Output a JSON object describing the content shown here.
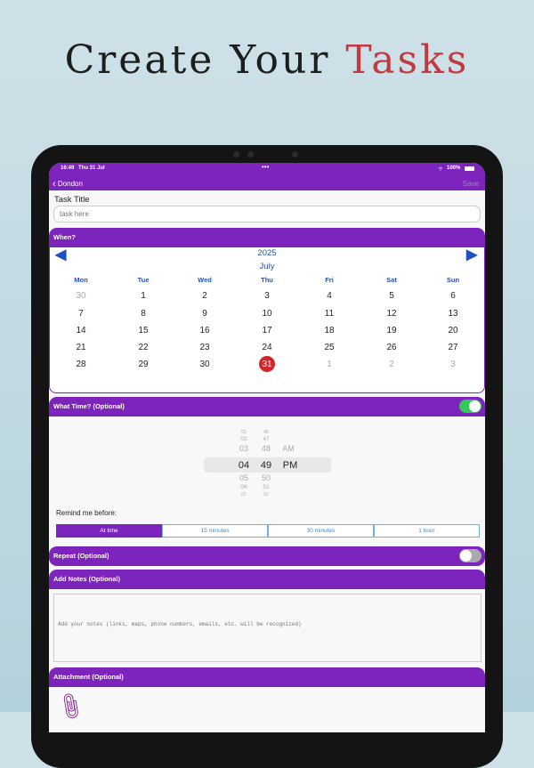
{
  "headline": {
    "part1": "Create Your",
    "part2": "Tasks"
  },
  "status": {
    "time": "16:49",
    "date": "Thu 31 Jul",
    "battery": "100%"
  },
  "nav": {
    "back": "Dondon",
    "save": "Save"
  },
  "task": {
    "label": "Task Title",
    "placeholder": "task here"
  },
  "when": {
    "header": "When?",
    "year": "2025",
    "month": "July",
    "days": [
      "Mon",
      "Tue",
      "Wed",
      "Thu",
      "Fri",
      "Sat",
      "Sun"
    ],
    "rows": [
      [
        "30",
        "1",
        "2",
        "3",
        "4",
        "5",
        "6"
      ],
      [
        "7",
        "8",
        "9",
        "10",
        "11",
        "12",
        "13"
      ],
      [
        "14",
        "15",
        "16",
        "17",
        "18",
        "19",
        "20"
      ],
      [
        "21",
        "22",
        "23",
        "24",
        "25",
        "26",
        "27"
      ],
      [
        "28",
        "29",
        "30",
        "31",
        "1",
        "2",
        "3"
      ]
    ],
    "selected": "31"
  },
  "time": {
    "header": "What Time? (Optional)",
    "enabled": true,
    "hours": [
      "01",
      "02",
      "03",
      "04",
      "05",
      "06",
      "07"
    ],
    "minutes": [
      "46",
      "47",
      "48",
      "49",
      "50",
      "51",
      "52"
    ],
    "ampm": [
      "AM",
      "PM"
    ],
    "selected": {
      "hour": "04",
      "minute": "49",
      "ampm": "PM"
    },
    "remind_label": "Remind me before:",
    "remind_options": [
      "At time",
      "15 minutes",
      "30 minutes",
      "1 hour"
    ],
    "remind_selected": "At time"
  },
  "repeat": {
    "header": "Repeat (Optional)",
    "enabled": false
  },
  "notes": {
    "header": "Add Notes (Optional)",
    "placeholder": "Add your notes (links, maps, phone numbers, emails, etc. will be recognized)"
  },
  "attachment": {
    "header": "Attachment (Optional)",
    "icon": "paperclip-icon"
  },
  "colors": {
    "accent": "#7d24bd",
    "title_red": "#c23a40",
    "toggle_on": "#34c759",
    "selected_day": "#d0262a"
  }
}
